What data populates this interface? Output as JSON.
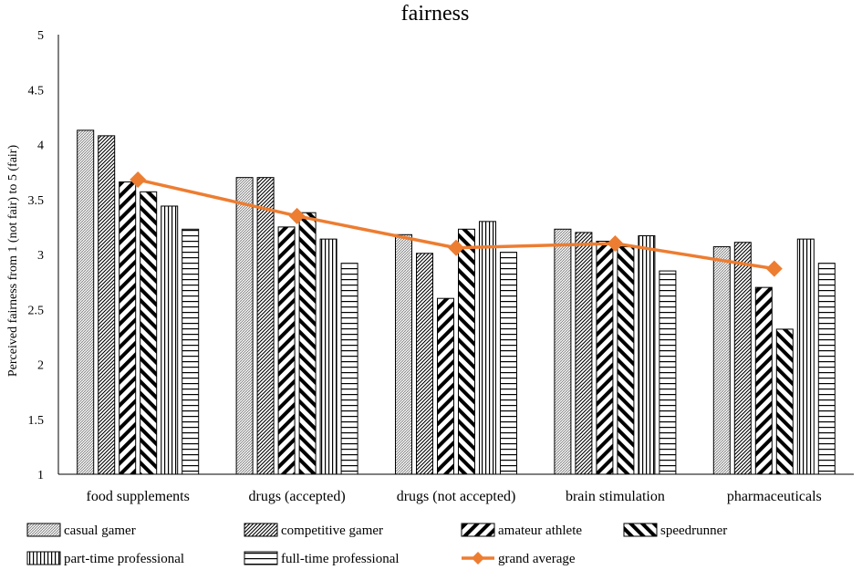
{
  "chart_data": {
    "type": "bar",
    "title": "fairness",
    "xlabel": "",
    "ylabel": "Perceived fairness from 1 (not fair) to 5 (fair)",
    "ylim": [
      1,
      5
    ],
    "yticks": [
      "1",
      "1.5",
      "2",
      "2.5",
      "3",
      "3.5",
      "4",
      "4.5",
      "5"
    ],
    "grid": false,
    "categories": [
      "food supplements",
      "drugs (accepted)",
      "drugs (not accepted)",
      "brain stimulation",
      "pharmaceuticals"
    ],
    "series": [
      {
        "name": "casual gamer",
        "pattern": "dots",
        "values": [
          4.13,
          3.7,
          3.18,
          3.23,
          3.07
        ]
      },
      {
        "name": "competitive gamer",
        "pattern": "diag-dense",
        "values": [
          4.08,
          3.7,
          3.01,
          3.2,
          3.11
        ]
      },
      {
        "name": "amateur athlete",
        "pattern": "diag-wide",
        "values": [
          3.66,
          3.25,
          2.6,
          3.12,
          2.7
        ]
      },
      {
        "name": "speedrunner",
        "pattern": "diag-up",
        "values": [
          3.57,
          3.38,
          3.23,
          3.07,
          2.32
        ]
      },
      {
        "name": "part-time professional",
        "pattern": "vertical",
        "values": [
          3.44,
          3.14,
          3.3,
          3.17,
          3.14
        ]
      },
      {
        "name": "full-time professional",
        "pattern": "horizontal",
        "values": [
          3.23,
          2.92,
          3.02,
          2.85,
          2.92
        ]
      }
    ],
    "line_series": {
      "name": "grand average",
      "color": "#ED7D31",
      "marker": "diamond",
      "values": [
        3.68,
        3.35,
        3.06,
        3.1,
        2.87
      ]
    },
    "legend_position": "bottom"
  }
}
